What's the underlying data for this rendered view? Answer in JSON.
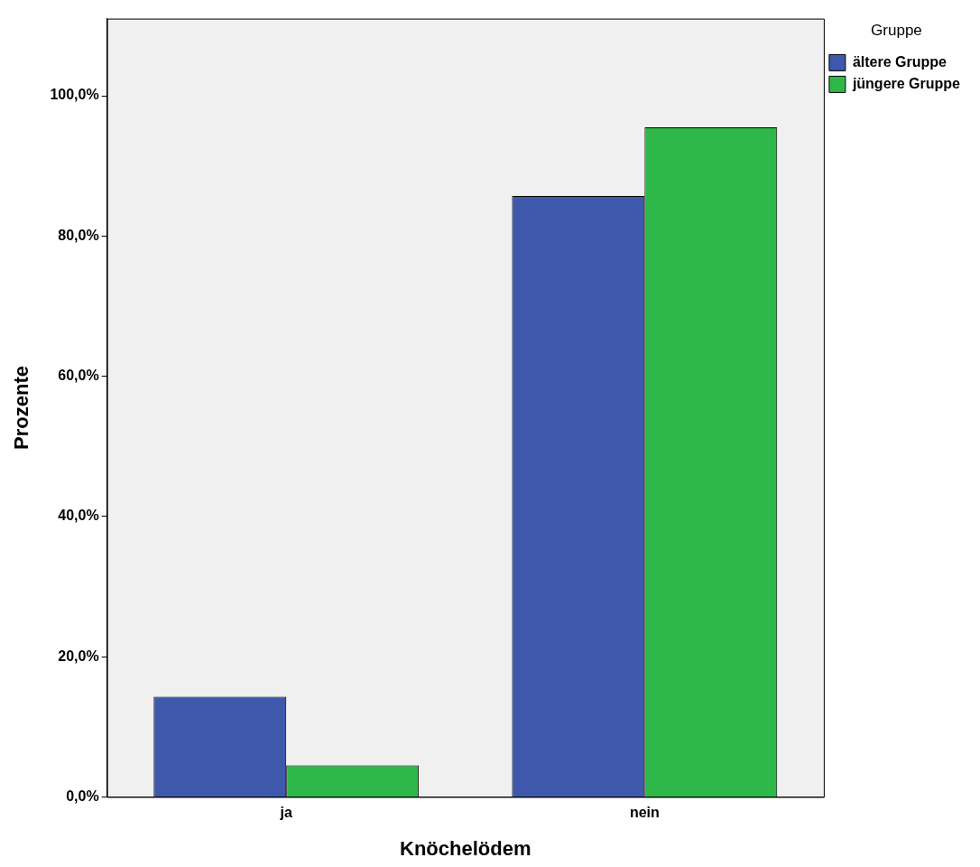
{
  "chart_data": {
    "type": "bar",
    "xlabel": "Knöchelödem",
    "ylabel": "Prozente",
    "legend_title": "Gruppe",
    "legend": "top right",
    "grid": false,
    "categories": [
      "ja",
      "nein"
    ],
    "series": [
      {
        "name": "ältere Gruppe",
        "color": "#3e58ac",
        "values": [
          14.3,
          85.7
        ]
      },
      {
        "name": "jüngere Gruppe",
        "color": "#2fb84a",
        "values": [
          4.5,
          95.5
        ]
      }
    ],
    "ylim": [
      0,
      111
    ],
    "yticks": [
      {
        "value": 0,
        "label": "0,0%"
      },
      {
        "value": 20,
        "label": "20,0%"
      },
      {
        "value": 40,
        "label": "40,0%"
      },
      {
        "value": 60,
        "label": "60,0%"
      },
      {
        "value": 80,
        "label": "80,0%"
      },
      {
        "value": 100,
        "label": "100,0%"
      }
    ]
  }
}
